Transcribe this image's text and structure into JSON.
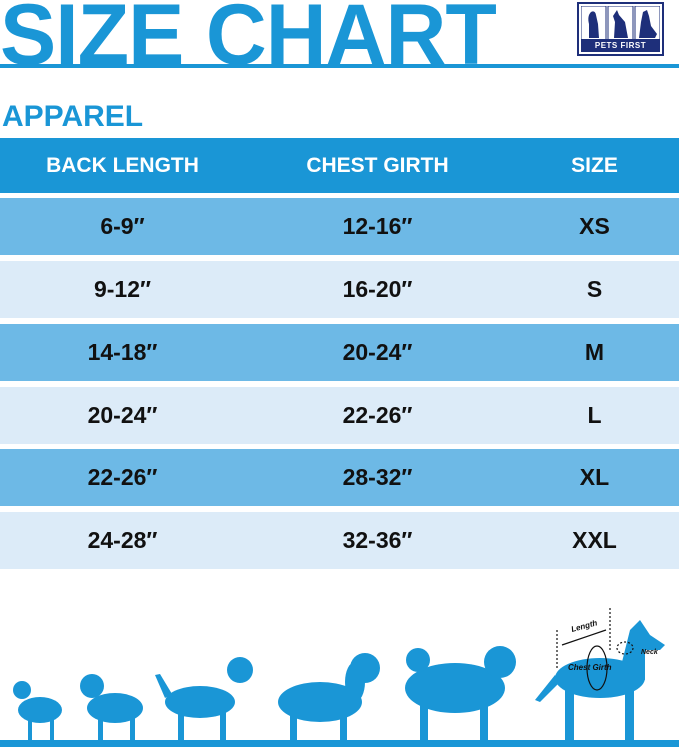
{
  "title": "SIZE CHART",
  "logo": {
    "text": "PETS FIRST"
  },
  "section": "APPAREL",
  "table": {
    "headers": [
      "BACK LENGTH",
      "CHEST GIRTH",
      "SIZE"
    ],
    "rows": [
      [
        "6-9″",
        "12-16″",
        "XS"
      ],
      [
        "9-12″",
        "16-20″",
        "S"
      ],
      [
        "14-18″",
        "20-24″",
        "M"
      ],
      [
        "20-24″",
        "22-26″",
        "L"
      ],
      [
        "22-26″",
        "28-32″",
        "XL"
      ],
      [
        "24-28″",
        "32-36″",
        "XXL"
      ]
    ]
  },
  "diagram": {
    "length_label": "Length",
    "chest_label": "Chest Girth",
    "neck_label": "Neck"
  },
  "colors": {
    "brand_blue": "#1a96d6",
    "row_dark": "#6db9e6",
    "row_light": "#dcebf8",
    "logo_navy": "#1e2f7a"
  }
}
